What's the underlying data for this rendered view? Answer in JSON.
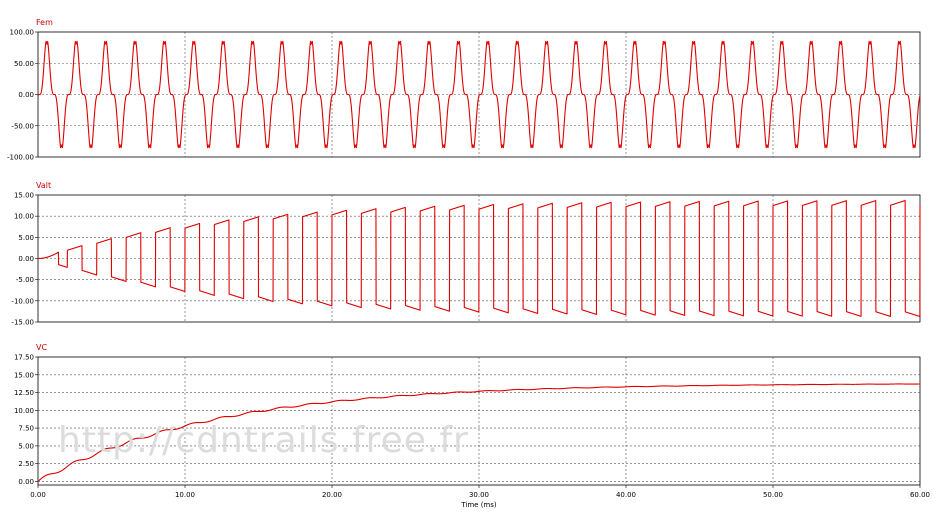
{
  "watermark": "http://cdntrails.free.fr",
  "colors": {
    "trace": "#e00000",
    "grid": "#555555",
    "label": "#cc0000"
  },
  "chart_data": [
    {
      "type": "line",
      "title": "Fem",
      "xlim": [
        0,
        60
      ],
      "ylim": [
        -100,
        100
      ],
      "grid": true,
      "yticks": [
        {
          "value": 100,
          "label": "100.00"
        },
        {
          "value": 50,
          "label": "50.00"
        },
        {
          "value": 0,
          "label": "0.00"
        },
        {
          "value": -50,
          "label": "-50.00"
        },
        {
          "value": -100,
          "label": "-100.00"
        }
      ],
      "series": [
        {
          "period_ms": 2.0,
          "peak": 90,
          "offset_ms": 0.1
        }
      ]
    },
    {
      "type": "line",
      "title": "Valt",
      "xlim": [
        0,
        60
      ],
      "ylim": [
        -15,
        15
      ],
      "grid": true,
      "yticks": [
        {
          "value": 15,
          "label": "15.00"
        },
        {
          "value": 10,
          "label": "10.00"
        },
        {
          "value": 5,
          "label": "5.00"
        },
        {
          "value": 0,
          "label": "0.00"
        },
        {
          "value": -5,
          "label": "-5.00"
        },
        {
          "value": -10,
          "label": "-10.00"
        },
        {
          "value": -15,
          "label": "-15.00"
        }
      ],
      "series": [
        {
          "period_ms": 2.0,
          "final_amplitude": 13.8,
          "time_constant_ms": 12
        }
      ]
    },
    {
      "type": "line",
      "title": "VC",
      "xlabel": "Time (ms)",
      "xlim": [
        0,
        60
      ],
      "ylim": [
        -0.5,
        17.5
      ],
      "grid": true,
      "yticks": [
        {
          "value": 17.5,
          "label": "17.50"
        },
        {
          "value": 15,
          "label": "15.00"
        },
        {
          "value": 12.5,
          "label": "12.50"
        },
        {
          "value": 10,
          "label": "10.00"
        },
        {
          "value": 7.5,
          "label": "7.50"
        },
        {
          "value": 5,
          "label": "5.00"
        },
        {
          "value": 2.5,
          "label": "2.50"
        },
        {
          "value": 0,
          "label": "0.00"
        }
      ],
      "xticks": [
        {
          "value": 0,
          "label": "0.00"
        },
        {
          "value": 10,
          "label": "10.00"
        },
        {
          "value": 20,
          "label": "20.00"
        },
        {
          "value": 30,
          "label": "30.00"
        },
        {
          "value": 40,
          "label": "40.00"
        },
        {
          "value": 50,
          "label": "50.00"
        },
        {
          "value": 60,
          "label": "60.00"
        }
      ],
      "series": [
        {
          "final_value": 13.8,
          "time_constant_ms": 12
        }
      ]
    }
  ]
}
